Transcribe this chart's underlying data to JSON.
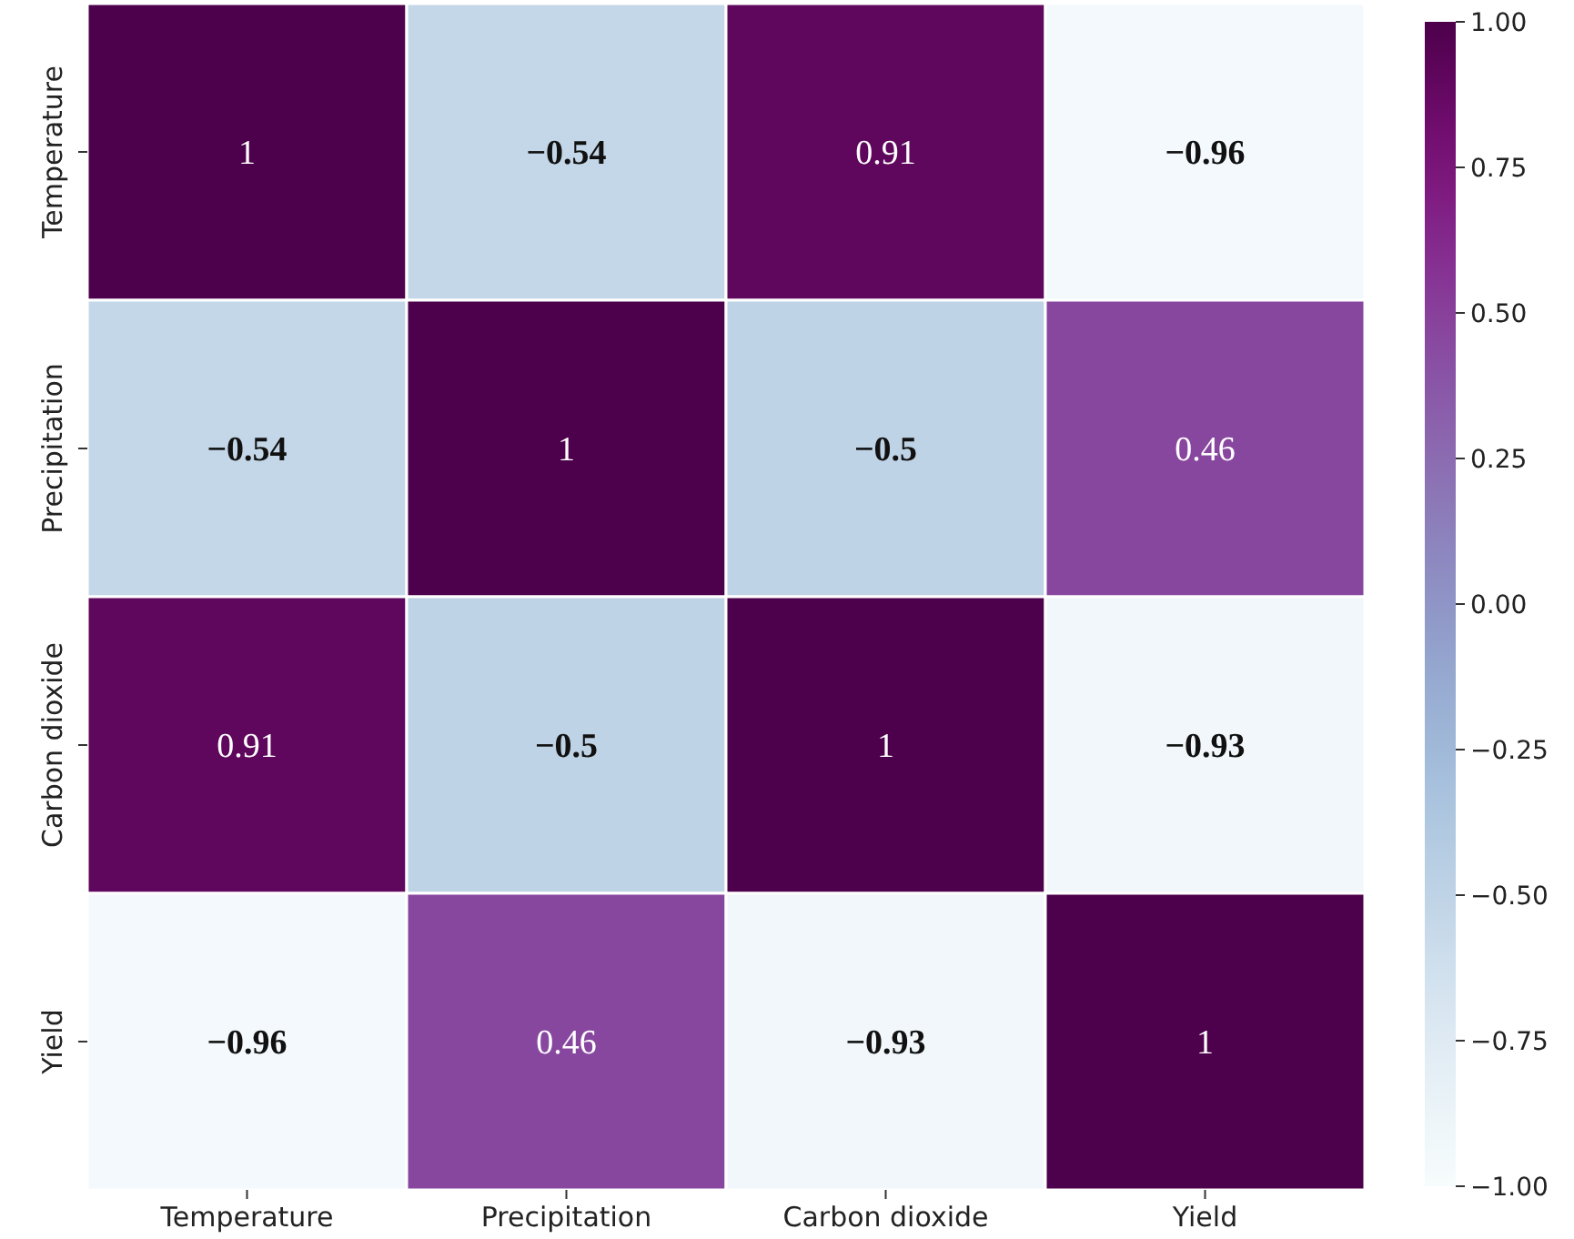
{
  "chart_data": {
    "type": "heatmap",
    "categories": [
      "Temperature",
      "Precipitation",
      "Carbon dioxide",
      "Yield"
    ],
    "y_categories": [
      "Temperature",
      "Precipitation",
      "Carbon dioxide",
      "Yield"
    ],
    "cells": [
      [
        1,
        -0.54,
        0.91,
        -0.96
      ],
      [
        -0.54,
        1,
        -0.5,
        0.46
      ],
      [
        0.91,
        -0.5,
        1,
        -0.93
      ],
      [
        -0.96,
        0.46,
        -0.93,
        1
      ]
    ],
    "cell_labels": [
      [
        "1",
        "−0.54",
        "0.91",
        "−0.96"
      ],
      [
        "−0.54",
        "1",
        "−0.5",
        "0.46"
      ],
      [
        "0.91",
        "−0.5",
        "1",
        "−0.93"
      ],
      [
        "−0.96",
        "0.46",
        "−0.93",
        "1"
      ]
    ],
    "clim": [
      -1,
      1
    ],
    "cticks": [
      {
        "value": 1,
        "label": "1.00"
      },
      {
        "value": 0.75,
        "label": "0.75"
      },
      {
        "value": 0.5,
        "label": "0.50"
      },
      {
        "value": 0.25,
        "label": "0.25"
      },
      {
        "value": 0,
        "label": "0.00"
      },
      {
        "value": -0.25,
        "label": "−0.25"
      },
      {
        "value": -0.5,
        "label": "−0.50"
      },
      {
        "value": -0.75,
        "label": "−0.75"
      },
      {
        "value": -1,
        "label": "−1.00"
      }
    ]
  }
}
